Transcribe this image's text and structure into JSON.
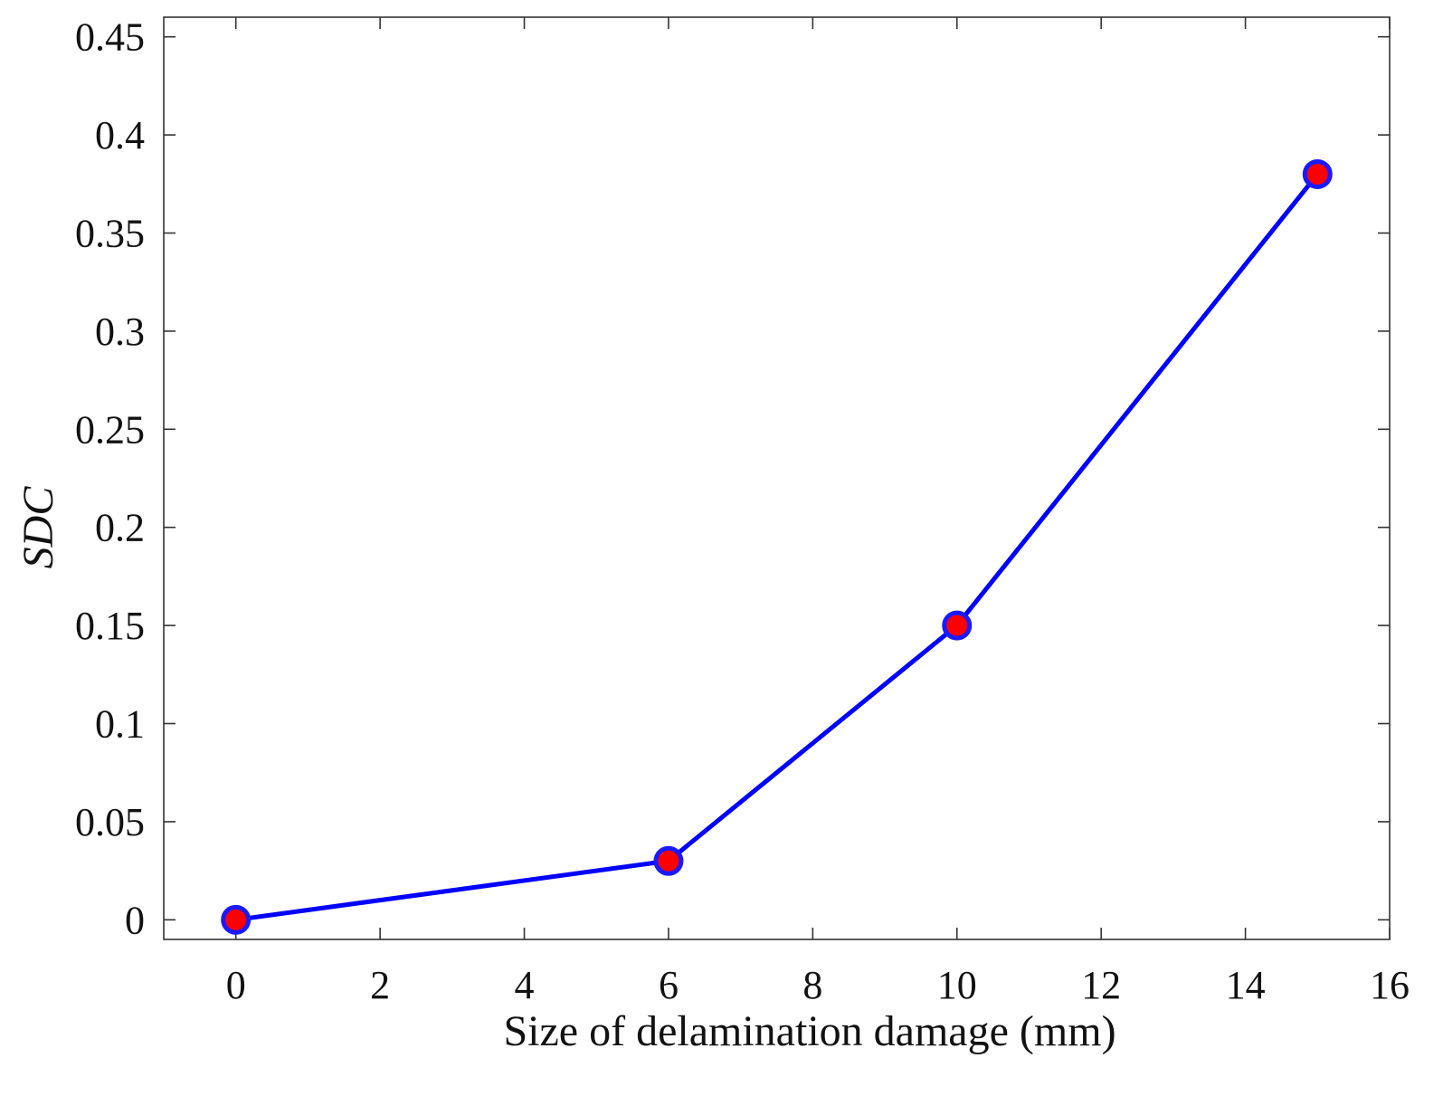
{
  "chart_data": {
    "type": "line",
    "title": "",
    "xlabel": "Size of delamination damage (mm)",
    "ylabel": "SDC",
    "xlim": [
      -1,
      16
    ],
    "ylim": [
      -0.01,
      0.46
    ],
    "xticks": [
      0,
      2,
      4,
      6,
      8,
      10,
      12,
      14,
      16
    ],
    "yticks": [
      0,
      0.05,
      0.1,
      0.15,
      0.2,
      0.25,
      0.3,
      0.35,
      0.4,
      0.45
    ],
    "xtick_labels": [
      "0",
      "2",
      "4",
      "6",
      "8",
      "10",
      "12",
      "14",
      "16"
    ],
    "ytick_labels": [
      "0",
      "0.05",
      "0.1",
      "0.15",
      "0.2",
      "0.25",
      "0.3",
      "0.35",
      "0.4",
      "0.45"
    ],
    "grid": false,
    "series": [
      {
        "name": "SDC",
        "x": [
          0,
          6,
          10,
          15
        ],
        "y": [
          0,
          0.03,
          0.15,
          0.38
        ],
        "line_color": "#0000ff",
        "marker_face": "#ff0000",
        "marker_edge": "#1a1aff"
      }
    ]
  }
}
